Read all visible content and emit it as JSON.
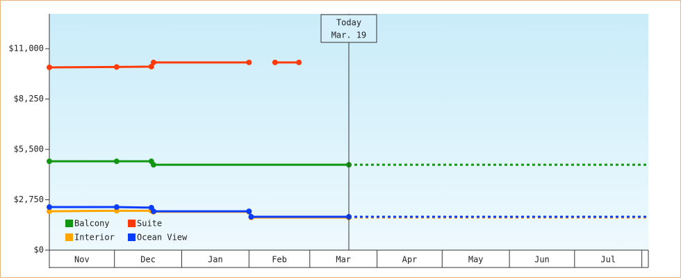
{
  "chart_data": {
    "type": "line",
    "xlim": [
      0,
      276
    ],
    "xticks": [
      {
        "value": 0,
        "label": "Nov"
      },
      {
        "value": 30,
        "label": "Dec"
      },
      {
        "value": 61,
        "label": "Jan"
      },
      {
        "value": 92,
        "label": "Feb"
      },
      {
        "value": 120,
        "label": "Mar"
      },
      {
        "value": 151,
        "label": "Apr"
      },
      {
        "value": 181,
        "label": "May"
      },
      {
        "value": 212,
        "label": "Jun"
      },
      {
        "value": 242,
        "label": "Jul"
      },
      {
        "value": 273,
        "label": null
      }
    ],
    "ylim": [
      0,
      12900
    ],
    "yticks": [
      {
        "value": 0,
        "label": "$0"
      },
      {
        "value": 2750,
        "label": "$2,750"
      },
      {
        "value": 5500,
        "label": "$5,500"
      },
      {
        "value": 8250,
        "label": "$8,250"
      },
      {
        "value": 11000,
        "label": "$11,000"
      }
    ],
    "annotation": {
      "x": 138,
      "lines": [
        "Today",
        "Mar. 19"
      ]
    },
    "series": [
      {
        "name": "Balcony",
        "color": "#129612",
        "projection": true,
        "x": [
          0,
          31,
          47,
          48,
          138
        ],
        "values": [
          4850,
          4850,
          4850,
          4660,
          4660
        ]
      },
      {
        "name": "Suite",
        "color": "#ff3a0a",
        "projection": false,
        "x": [
          0,
          31,
          47,
          48,
          92,
          98,
          104,
          115
        ],
        "values": [
          9980,
          10000,
          10020,
          10250,
          10250,
          null,
          10250,
          10250
        ]
      },
      {
        "name": "Interior",
        "color": "#ffa500",
        "projection": true,
        "x": [
          0,
          31,
          47,
          48,
          92,
          93,
          138
        ],
        "values": [
          2120,
          2150,
          2150,
          2090,
          2090,
          1780,
          1780
        ]
      },
      {
        "name": "Ocean View",
        "color": "#0a3cff",
        "projection": true,
        "x": [
          0,
          31,
          47,
          48,
          92,
          93,
          138
        ],
        "values": [
          2350,
          2350,
          2320,
          2120,
          2120,
          1820,
          1820
        ]
      }
    ]
  }
}
